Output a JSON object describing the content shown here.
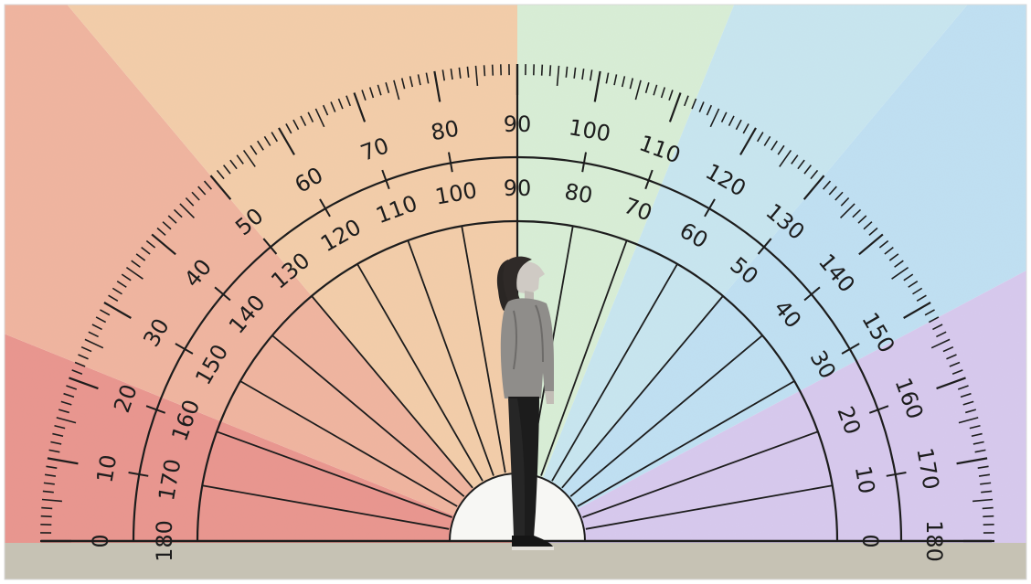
{
  "outer_scale": [
    "0",
    "10",
    "20",
    "30",
    "40",
    "50",
    "60",
    "70",
    "80",
    "90",
    "100",
    "110",
    "120",
    "130",
    "140",
    "150",
    "160",
    "170",
    "180"
  ],
  "inner_scale": [
    "180",
    "170",
    "160",
    "150",
    "140",
    "130",
    "120",
    "110",
    "100",
    "90",
    "80",
    "70",
    "60",
    "50",
    "40",
    "30",
    "20",
    "10",
    "0"
  ],
  "colors": {
    "frame_border": "#d9d9d9",
    "ground": "#c6c2b4",
    "ink": "#1d1d1d",
    "hub": "#f7f7f4",
    "sectors": [
      "#e9958e",
      "#f0b49f",
      "#f3cda9",
      "#efdfb3",
      "#d8eed6",
      "#c7e6f0",
      "#bfe0f3",
      "#d7c9ee"
    ]
  },
  "figure": "woman-looking-up-photo"
}
